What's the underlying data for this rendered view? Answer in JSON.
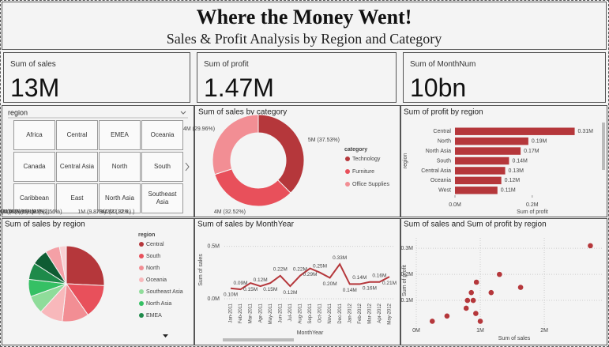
{
  "header": {
    "title": "Where the Money Went!",
    "subtitle": "Sales & Profit Analysis by Region and Category"
  },
  "cards": [
    {
      "label": "Sum of sales",
      "value": "13M"
    },
    {
      "label": "Sum of profit",
      "value": "1.47M"
    },
    {
      "label": "Sum of MonthNum",
      "value": "10bn"
    }
  ],
  "slicer": {
    "title": "region",
    "items": [
      "Africa",
      "Central",
      "EMEA",
      "Oceania",
      "Canada",
      "Central Asia",
      "North",
      "South",
      "Caribbean",
      "East",
      "North Asia",
      "Southeast Asia"
    ]
  },
  "chart_data": [
    {
      "type": "donut",
      "title": "Sum of sales by category",
      "legend_title": "category",
      "categories": [
        "Technology",
        "Furniture",
        "Office Supplies"
      ],
      "values": [
        37.53,
        32.52,
        29.96
      ],
      "value_labels": [
        "5M (37.53%)",
        "4M (32.52%)",
        "4M (29.96%)"
      ],
      "colors": [
        "#b5373b",
        "#e8505b",
        "#f28e94"
      ]
    },
    {
      "type": "bar",
      "orientation": "horizontal",
      "title": "Sum of profit by region",
      "x_label": "Sum of profit",
      "y_label": "region",
      "categories": [
        "Central",
        "North",
        "North Asia",
        "South",
        "Central Asia",
        "Oceania",
        "West"
      ],
      "values": [
        0.31,
        0.19,
        0.17,
        0.14,
        0.13,
        0.12,
        0.11
      ],
      "value_labels": [
        "0.31M",
        "0.19M",
        "0.17M",
        "0.14M",
        "0.13M",
        "0.12M",
        "0.11M"
      ],
      "color": "#b5373b",
      "xlim": [
        0,
        0.36
      ],
      "xticks": [
        {
          "value": 0,
          "label": "0.0M"
        },
        {
          "value": 0.2,
          "label": "0.2M"
        }
      ]
    },
    {
      "type": "pie",
      "title": "Sum of sales by region",
      "legend_title": "region",
      "categories": [
        "Central",
        "South",
        "North",
        "Oceania",
        "Southeast Asia",
        "North Asia",
        "EMEA",
        null,
        null,
        null
      ],
      "values": [
        22.32,
        12.6,
        9.87,
        8.7,
        6.71,
        6.38,
        6.2,
        5.95,
        5.3,
        2.56
      ],
      "value_labels": [
        "3M (22.32%)",
        "2M (12.6...)",
        "1M (9.87%)",
        "1M (8.7%)",
        "1M (6.71%)",
        "1M (6.38%)",
        "1M (6.2%)",
        "1M (5.95%)",
        "1M (5...)",
        "0M (2.56%)"
      ],
      "colors": [
        "#b5373b",
        "#e8505b",
        "#f28e94",
        "#f8b8bb",
        "#8fdc9a",
        "#35c064",
        "#1e8a4a",
        "#0f5c33",
        "#f4a0a6",
        "#f9d0d3"
      ]
    },
    {
      "type": "line",
      "title": "Sum of sales by MonthYear",
      "x_label": "MonthYear",
      "y_label": "Sum of sales",
      "categories": [
        "Jan-2011",
        "Feb-2011",
        "Mar-2011",
        "Apr-2011",
        "May-2011",
        "Jun-2011",
        "Jul-2011",
        "Aug-2011",
        "Sep-2011",
        "Oct-2011",
        "Nov-2011",
        "Dec-2011",
        "Jan-2012",
        "Feb-2012",
        "Mar-2012",
        "Apr-2012",
        "May-2012"
      ],
      "values": [
        0.1,
        0.09,
        0.15,
        0.12,
        0.15,
        0.22,
        0.12,
        0.22,
        0.29,
        0.25,
        0.2,
        0.33,
        0.14,
        0.14,
        0.16,
        0.16,
        0.21
      ],
      "value_labels": [
        "0.10M",
        "0.09M",
        "0.15M",
        "0.12M",
        "0.15M",
        "0.22M",
        "0.12M",
        "0.22M",
        "0.29M",
        "0.25M",
        "0.20M",
        "0.33M",
        "0.14M",
        "0.14M",
        "0.16M",
        "0.16M",
        "0.21M"
      ],
      "color": "#b5373b",
      "ylim": [
        0,
        0.55
      ],
      "yticks": [
        {
          "value": 0,
          "label": "0.0M"
        },
        {
          "value": 0.5,
          "label": "0.5M"
        }
      ],
      "grid": true
    },
    {
      "type": "scatter",
      "title": "Sum of sales and Sum of profit by region",
      "x_label": "Sum of sales",
      "y_label": "Sum of profit",
      "x": [
        2.72,
        1.3,
        1.63,
        1.17,
        0.94,
        0.86,
        0.8,
        0.89,
        0.78,
        0.93,
        1.0,
        0.48,
        0.25
      ],
      "values": [
        0.31,
        0.2,
        0.15,
        0.13,
        0.17,
        0.13,
        0.1,
        0.1,
        0.07,
        0.05,
        0.02,
        0.04,
        0.02
      ],
      "color": "#b5373b",
      "xlim": [
        0,
        2.9
      ],
      "ylim": [
        0,
        0.34
      ],
      "xticks": [
        {
          "value": 0,
          "label": "0M"
        },
        {
          "value": 1,
          "label": "1M"
        },
        {
          "value": 2,
          "label": "2M"
        }
      ],
      "yticks": [
        {
          "value": 0.1,
          "label": "0.1M"
        },
        {
          "value": 0.2,
          "label": "0.2M"
        },
        {
          "value": 0.3,
          "label": "0.3M"
        }
      ],
      "grid": true
    }
  ]
}
